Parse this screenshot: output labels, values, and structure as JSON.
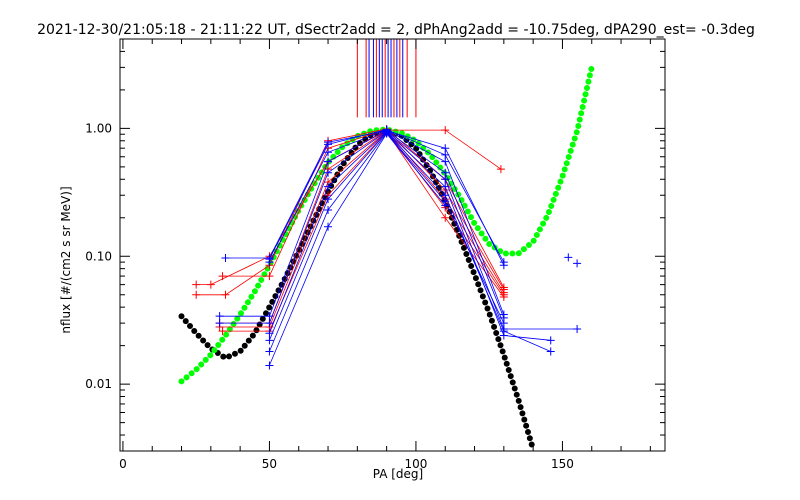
{
  "chart_data": {
    "type": "scatter",
    "title": "2021-12-30/21:05:18 - 21:11:22 UT, dSectr2add = 2, dPhAng2add = -10.75deg, dPA290_est=  -0.3deg",
    "xlabel": "PA [deg]",
    "ylabel": "nflux [#/(cm2 s sr MeV)]",
    "xlim": [
      -1,
      185
    ],
    "ylim": [
      0.003,
      5.0
    ],
    "yscale": "log",
    "x_ticks": [
      0,
      50,
      100,
      150
    ],
    "x_tick_labels": [
      "0",
      "50",
      "100",
      "150"
    ],
    "y_ticks": [
      0.01,
      0.1,
      1.0
    ],
    "y_tick_labels": [
      "0.01",
      "0.10",
      "1.00"
    ],
    "grid": false,
    "colors": {
      "red": "#ff0000",
      "blue": "#0000ff",
      "black": "#000000",
      "green": "#00ff00"
    },
    "vertical_markers": [
      {
        "x": 80,
        "y_bottom": 1.22,
        "color": "#ff0000"
      },
      {
        "x": 83,
        "y_bottom": 1.22,
        "color": "#ff0000"
      },
      {
        "x": 84,
        "y_bottom": 1.22,
        "color": "#0000ff"
      },
      {
        "x": 85.5,
        "y_bottom": 1.22,
        "color": "#0000ff"
      },
      {
        "x": 86.5,
        "y_bottom": 1.22,
        "color": "#ff0000"
      },
      {
        "x": 87.5,
        "y_bottom": 1.22,
        "color": "#0000ff"
      },
      {
        "x": 88.5,
        "y_bottom": 1.22,
        "color": "#0000ff"
      },
      {
        "x": 89.5,
        "y_bottom": 1.22,
        "color": "#ff0000"
      },
      {
        "x": 90.5,
        "y_bottom": 1.22,
        "color": "#0000ff"
      },
      {
        "x": 91.5,
        "y_bottom": 1.22,
        "color": "#0000ff"
      },
      {
        "x": 92.5,
        "y_bottom": 1.22,
        "color": "#ff0000"
      },
      {
        "x": 93.5,
        "y_bottom": 1.22,
        "color": "#0000ff"
      },
      {
        "x": 94.5,
        "y_bottom": 1.22,
        "color": "#ff0000"
      },
      {
        "x": 95.5,
        "y_bottom": 1.22,
        "color": "#0000ff"
      },
      {
        "x": 97,
        "y_bottom": 1.22,
        "color": "#ff0000"
      },
      {
        "x": 100,
        "y_bottom": 1.22,
        "color": "#ff0000"
      }
    ],
    "series": [
      {
        "color": "#ff0000",
        "marker": "plus",
        "points": [
          [
            25,
            0.06
          ],
          [
            30,
            0.06
          ],
          [
            50,
            0.1
          ],
          [
            70,
            0.55
          ],
          [
            90,
            0.97
          ],
          [
            110,
            0.97
          ],
          [
            129,
            0.48
          ]
        ]
      },
      {
        "color": "#ff0000",
        "marker": "plus",
        "points": [
          [
            25,
            0.05
          ],
          [
            35,
            0.05
          ],
          [
            50,
            0.085
          ],
          [
            70,
            0.8
          ],
          [
            90,
            0.99
          ],
          [
            110,
            0.4
          ],
          [
            130,
            0.057
          ]
        ]
      },
      {
        "color": "#ff0000",
        "marker": "plus",
        "points": [
          [
            34,
            0.07
          ],
          [
            50,
            0.07
          ],
          [
            70,
            0.7
          ],
          [
            90,
            0.98
          ],
          [
            110,
            0.33
          ],
          [
            130,
            0.055
          ]
        ]
      },
      {
        "color": "#ff0000",
        "marker": "plus",
        "points": [
          [
            33,
            0.03
          ],
          [
            50,
            0.03
          ],
          [
            70,
            0.48
          ],
          [
            90,
            0.96
          ],
          [
            110,
            0.28
          ],
          [
            130,
            0.052
          ]
        ]
      },
      {
        "color": "#ff0000",
        "marker": "plus",
        "points": [
          [
            33,
            0.028
          ],
          [
            50,
            0.028
          ],
          [
            70,
            0.38
          ],
          [
            90,
            0.95
          ],
          [
            110,
            0.24
          ],
          [
            130,
            0.05
          ]
        ]
      },
      {
        "color": "#ff0000",
        "marker": "plus",
        "points": [
          [
            34,
            0.026
          ],
          [
            50,
            0.026
          ],
          [
            70,
            0.3
          ],
          [
            90,
            0.94
          ],
          [
            110,
            0.2
          ],
          [
            130,
            0.048
          ]
        ]
      },
      {
        "color": "#0000ff",
        "marker": "plus",
        "points": [
          [
            35,
            0.097
          ],
          [
            50,
            0.097
          ],
          [
            70,
            0.78
          ],
          [
            90,
            0.96
          ],
          [
            110,
            0.7
          ],
          [
            130,
            0.085
          ]
        ]
      },
      {
        "color": "#0000ff",
        "marker": "plus",
        "points": [
          [
            50,
            0.095
          ],
          [
            70,
            0.75
          ],
          [
            90,
            0.98
          ],
          [
            110,
            0.62
          ],
          [
            130,
            0.09
          ]
        ]
      },
      {
        "color": "#0000ff",
        "marker": "plus",
        "points": [
          [
            50,
            0.09
          ],
          [
            70,
            0.65
          ],
          [
            90,
            0.97
          ],
          [
            110,
            0.55
          ],
          [
            130,
            0.035
          ]
        ]
      },
      {
        "color": "#0000ff",
        "marker": "plus",
        "points": [
          [
            33,
            0.034
          ],
          [
            50,
            0.034
          ],
          [
            70,
            0.55
          ],
          [
            90,
            0.96
          ],
          [
            110,
            0.45
          ],
          [
            130,
            0.033
          ]
        ]
      },
      {
        "color": "#0000ff",
        "marker": "plus",
        "points": [
          [
            33,
            0.03
          ],
          [
            50,
            0.03
          ],
          [
            70,
            0.45
          ],
          [
            90,
            0.95
          ],
          [
            110,
            0.4
          ],
          [
            130,
            0.027
          ],
          [
            155,
            0.027
          ]
        ]
      },
      {
        "color": "#0000ff",
        "marker": "plus",
        "points": [
          [
            50,
            0.025
          ],
          [
            70,
            0.35
          ],
          [
            90,
            0.94
          ],
          [
            110,
            0.35
          ],
          [
            130,
            0.024
          ],
          [
            146,
            0.022
          ]
        ]
      },
      {
        "color": "#0000ff",
        "marker": "plus",
        "points": [
          [
            50,
            0.022
          ],
          [
            70,
            0.28
          ],
          [
            90,
            0.93
          ],
          [
            110,
            0.3
          ],
          [
            130,
            0.026
          ],
          [
            146,
            0.018
          ]
        ]
      },
      {
        "color": "#0000ff",
        "marker": "plus",
        "points": [
          [
            50,
            0.018
          ],
          [
            70,
            0.23
          ],
          [
            90,
            0.92
          ],
          [
            110,
            0.27
          ],
          [
            130,
            0.03
          ]
        ]
      },
      {
        "color": "#0000ff",
        "marker": "plus",
        "points": [
          [
            50,
            0.014
          ],
          [
            70,
            0.17
          ],
          [
            90,
            0.91
          ],
          [
            110,
            0.25
          ]
        ]
      },
      {
        "color": "#0000ff",
        "marker": "plus",
        "points": [
          [
            152,
            0.098
          ]
        ]
      },
      {
        "color": "#0000ff",
        "marker": "plus",
        "points": [
          [
            155,
            0.088
          ]
        ]
      }
    ],
    "fit_curves": [
      {
        "color": "#000000",
        "x": [
          20,
          25,
          30,
          35,
          40,
          45,
          50,
          55,
          60,
          65,
          70,
          75,
          80,
          85,
          90,
          95,
          100,
          105,
          110,
          115,
          120,
          125,
          130,
          135,
          140
        ],
        "y": [
          0.034,
          0.025,
          0.019,
          0.016,
          0.018,
          0.025,
          0.04,
          0.065,
          0.11,
          0.19,
          0.32,
          0.52,
          0.74,
          0.9,
          0.95,
          0.88,
          0.7,
          0.46,
          0.27,
          0.14,
          0.072,
          0.036,
          0.017,
          0.0075,
          0.0031
        ]
      },
      {
        "color": "#00ff00",
        "x": [
          20,
          25,
          30,
          35,
          40,
          45,
          50,
          55,
          60,
          65,
          70,
          75,
          80,
          85,
          90,
          95,
          100,
          105,
          110,
          115,
          120,
          125,
          130,
          135,
          140,
          145,
          150,
          155,
          158,
          160
        ],
        "y": [
          0.0105,
          0.013,
          0.017,
          0.024,
          0.035,
          0.053,
          0.085,
          0.14,
          0.23,
          0.36,
          0.54,
          0.72,
          0.87,
          0.96,
          0.98,
          0.92,
          0.8,
          0.62,
          0.44,
          0.29,
          0.18,
          0.125,
          0.105,
          0.105,
          0.13,
          0.21,
          0.42,
          0.95,
          1.9,
          3.0
        ]
      }
    ]
  }
}
